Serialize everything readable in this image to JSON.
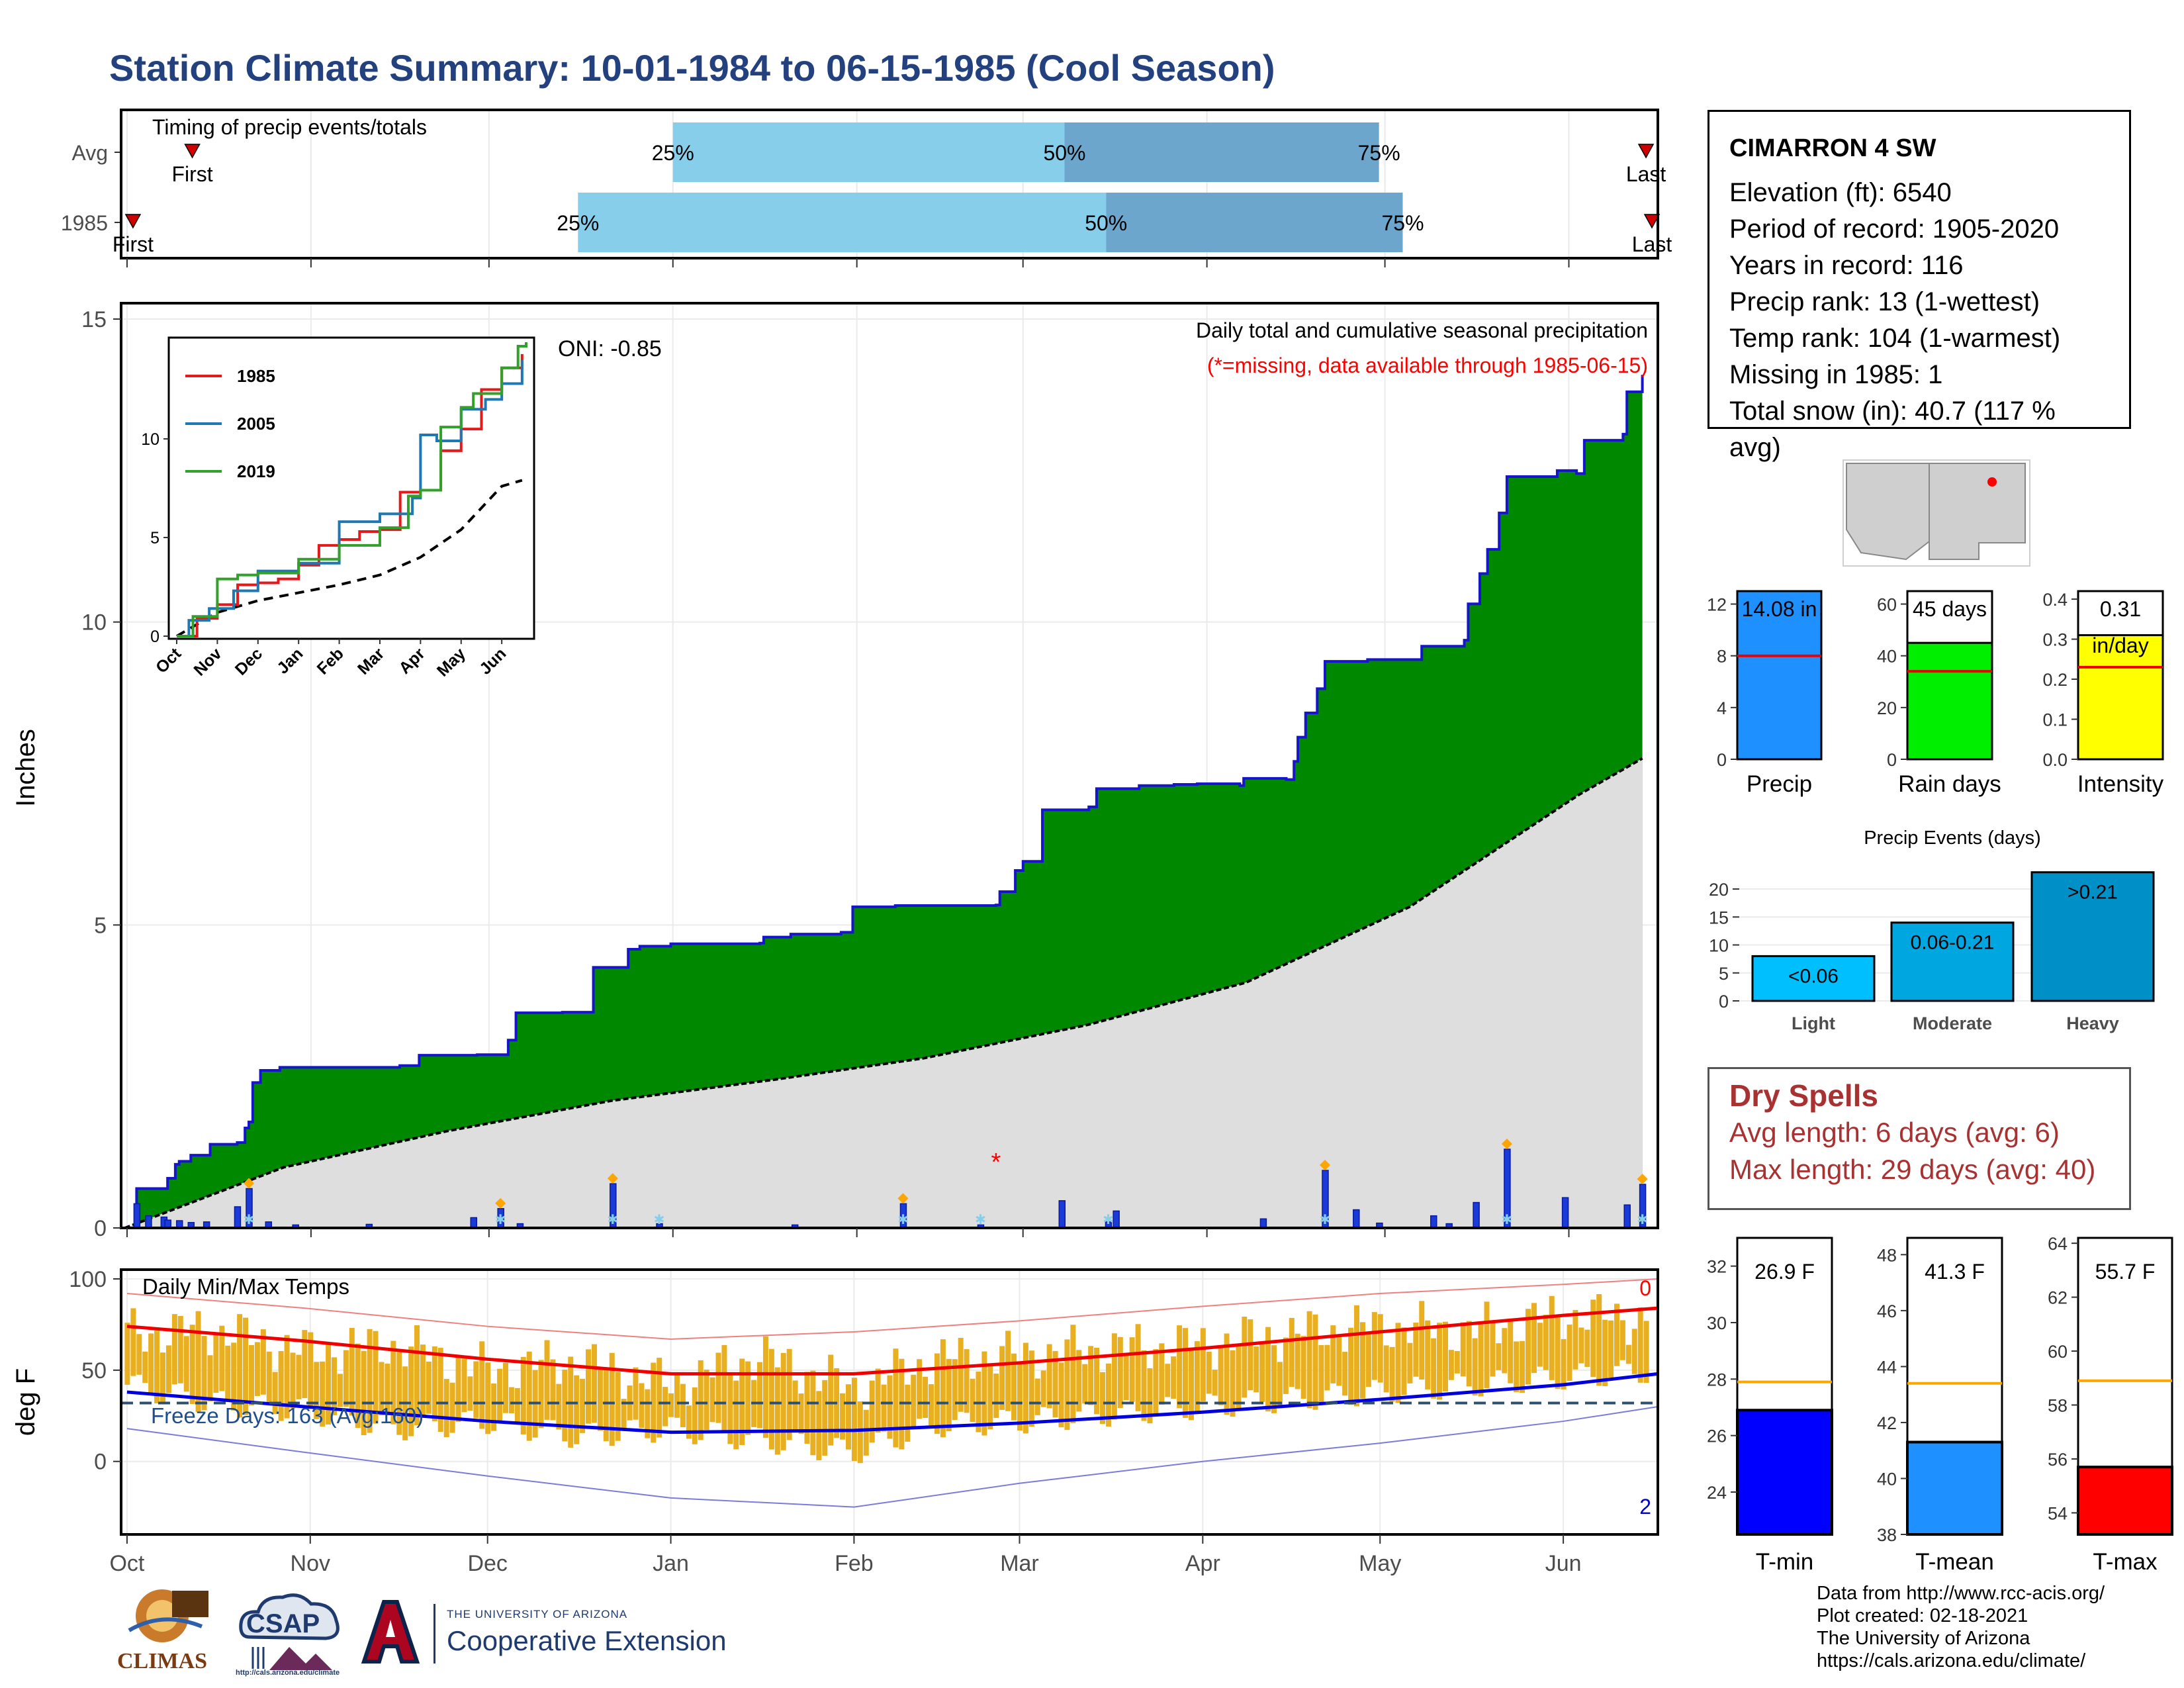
{
  "title": "Station Climate Summary: 10-01-1984 to 06-15-1985 (Cool Season)",
  "station": {
    "name": "CIMARRON 4 SW",
    "lines": [
      "Elevation (ft): 6540",
      "Period of record: 1905-2020",
      "Years in record: 116",
      "Precip rank: 13 (1-wettest)",
      "Temp rank: 104 (1-warmest)",
      "Missing in 1985: 1",
      "Total snow (in): 40.7 (117 % avg)"
    ]
  },
  "dry_spells": {
    "title": "Dry Spells",
    "avg_length": "Avg length: 6 days (avg: 6)",
    "max_length": "Max length: 29 days (avg: 40)"
  },
  "footer": {
    "lines": [
      "Data from http://www.rcc-acis.org/",
      "Plot created: 02-18-2021",
      "The University of Arizona",
      "https://cals.arizona.edu/climate/"
    ]
  },
  "logos": {
    "climas": "CLIMAS",
    "csap": "CSAP",
    "csap_url": "http://cals.arizona.edu/climate",
    "ua_small": "THE UNIVERSITY OF ARIZONA",
    "ua_big": "Cooperative Extension"
  },
  "chart_data": [
    {
      "id": "timing",
      "type": "bar",
      "title": "Timing of precip events/totals",
      "rows": [
        "Avg",
        "1985"
      ],
      "avg": {
        "first": "Oct 12",
        "p25": "Jan 1",
        "p50": "Mar 8",
        "p75": "Apr 30",
        "last": "Jun 14"
      },
      "y1985": {
        "first": "Oct 2",
        "p25": "Dec 16",
        "p50": "Mar 15",
        "p75": "May 4",
        "last": "Jun 15"
      },
      "labels": {
        "first": "First",
        "last": "Last",
        "p25": "25%",
        "p50": "50%",
        "p75": "75%"
      },
      "colors": {
        "early": "#87ceeb",
        "late": "#6ca6cd",
        "marker": "#d00000"
      }
    },
    {
      "id": "precip",
      "type": "area",
      "title": "Daily total and cumulative seasonal precipitation",
      "subtitle": "(*=missing, data available through 1985-06-15)",
      "ylabel": "Inches",
      "ylim": [
        0,
        15
      ],
      "yticks": [
        0,
        5,
        10,
        15
      ],
      "oni": "ONI: -0.85",
      "x_tick_labels": [
        "Oct",
        "Nov",
        "Dec",
        "Jan",
        "Feb",
        "Mar",
        "Apr",
        "May",
        "Jun"
      ],
      "cumulative_1985": [
        [
          0,
          0
        ],
        [
          3,
          0.65
        ],
        [
          10,
          0.65
        ],
        [
          11,
          0.82
        ],
        [
          13,
          1.05
        ],
        [
          14,
          1.1
        ],
        [
          17,
          1.2
        ],
        [
          22,
          1.38
        ],
        [
          29,
          1.41
        ],
        [
          31,
          1.65
        ],
        [
          32,
          1.75
        ],
        [
          33,
          2.4
        ],
        [
          35,
          2.6
        ],
        [
          40,
          2.65
        ],
        [
          55,
          2.65
        ],
        [
          71,
          2.68
        ],
        [
          76,
          2.85
        ],
        [
          91,
          2.86
        ],
        [
          99,
          3.1
        ],
        [
          101,
          3.55
        ],
        [
          113,
          3.56
        ],
        [
          121,
          4.3
        ],
        [
          130,
          4.6
        ],
        [
          133,
          4.65
        ],
        [
          141,
          4.69
        ],
        [
          164,
          4.7
        ],
        [
          165,
          4.8
        ],
        [
          172,
          4.85
        ],
        [
          185,
          4.88
        ],
        [
          188,
          5.3
        ],
        [
          199,
          5.32
        ],
        [
          225,
          5.33
        ],
        [
          226,
          5.55
        ],
        [
          230,
          5.9
        ],
        [
          232,
          6.05
        ],
        [
          237,
          6.9
        ],
        [
          249,
          6.95
        ],
        [
          251,
          7.25
        ],
        [
          262,
          7.3
        ],
        [
          271,
          7.32
        ],
        [
          277,
          7.33
        ],
        [
          288,
          7.3
        ],
        [
          289,
          7.42
        ],
        [
          300,
          7.4
        ],
        [
          302,
          7.7
        ],
        [
          303,
          8.1
        ],
        [
          305,
          8.5
        ],
        [
          308,
          8.9
        ],
        [
          310,
          9.35
        ],
        [
          321,
          9.38
        ],
        [
          335,
          9.6
        ],
        [
          346,
          9.7
        ],
        [
          347,
          10.3
        ],
        [
          350,
          10.8
        ],
        [
          352,
          11.2
        ],
        [
          355,
          11.8
        ],
        [
          357,
          12.4
        ],
        [
          370,
          12.5
        ],
        [
          375,
          12.45
        ],
        [
          377,
          13.0
        ],
        [
          387,
          13.1
        ],
        [
          388,
          13.8
        ],
        [
          392,
          14.08
        ]
      ],
      "cumulative_avg": [
        [
          0,
          0
        ],
        [
          30,
          1.0
        ],
        [
          61,
          1.6
        ],
        [
          92,
          2.1
        ],
        [
          123,
          2.45
        ],
        [
          151,
          2.8
        ],
        [
          182,
          3.35
        ],
        [
          212,
          4.05
        ],
        [
          243,
          5.3
        ],
        [
          275,
          7.15
        ],
        [
          287,
          7.75
        ]
      ],
      "daily_1985": [
        [
          3,
          0.4
        ],
        [
          6,
          0.2
        ],
        [
          10,
          0.18
        ],
        [
          11,
          0.13
        ],
        [
          14,
          0.12
        ],
        [
          17,
          0.09
        ],
        [
          21,
          0.1
        ],
        [
          29,
          0.35
        ],
        [
          32,
          0.65
        ],
        [
          37,
          0.1
        ],
        [
          44,
          0.05
        ],
        [
          63,
          0.06
        ],
        [
          90,
          0.17
        ],
        [
          97,
          0.32
        ],
        [
          102,
          0.07
        ],
        [
          126,
          0.73
        ],
        [
          138,
          0.07
        ],
        [
          173,
          0.05
        ],
        [
          201,
          0.4
        ],
        [
          221,
          0.05
        ],
        [
          242,
          0.45
        ],
        [
          254,
          0.1
        ],
        [
          256,
          0.28
        ],
        [
          294,
          0.15
        ],
        [
          310,
          0.95
        ],
        [
          318,
          0.3
        ],
        [
          324,
          0.08
        ],
        [
          338,
          0.2
        ],
        [
          342,
          0.07
        ],
        [
          349,
          0.42
        ],
        [
          357,
          1.3
        ],
        [
          372,
          0.5
        ],
        [
          388,
          0.38
        ],
        [
          392,
          0.72
        ]
      ],
      "missing_day": 225,
      "snow_days": [
        32,
        97,
        126,
        138,
        201,
        221,
        254,
        310,
        357,
        392
      ],
      "colors": {
        "cumulative": "#008800",
        "cum_line": "#1515cc",
        "avg_fill": "#dedede",
        "daily_bar": "#1a3bd8"
      }
    },
    {
      "id": "inset",
      "type": "line",
      "series_names": [
        "1985",
        "2005",
        "2019"
      ],
      "colors": [
        "#e31a1c",
        "#1f78b4",
        "#33a02c"
      ],
      "ylim": [
        0,
        15
      ],
      "yticks": [
        0,
        5,
        10
      ],
      "x_tick_labels": [
        "Oct",
        "Nov",
        "Dec",
        "Jan",
        "Feb",
        "Mar",
        "Apr",
        "May",
        "Jun"
      ],
      "s1985": [
        [
          0,
          0
        ],
        [
          0.5,
          0.9
        ],
        [
          1,
          1.6
        ],
        [
          1.5,
          2.6
        ],
        [
          2,
          2.7
        ],
        [
          2.5,
          2.9
        ],
        [
          3,
          3.6
        ],
        [
          3.5,
          4.6
        ],
        [
          4,
          4.9
        ],
        [
          4.5,
          5.3
        ],
        [
          5,
          5.4
        ],
        [
          5.5,
          7.3
        ],
        [
          6,
          7.4
        ],
        [
          6.5,
          9.4
        ],
        [
          7,
          10.5
        ],
        [
          7.5,
          12.5
        ],
        [
          8,
          13.6
        ],
        [
          8.5,
          14.3
        ]
      ],
      "s2005": [
        [
          0,
          0
        ],
        [
          0.3,
          0.8
        ],
        [
          0.8,
          1.4
        ],
        [
          1.4,
          2.3
        ],
        [
          2,
          3.3
        ],
        [
          3,
          3.7
        ],
        [
          4,
          5.8
        ],
        [
          5,
          6.2
        ],
        [
          5.8,
          7.0
        ],
        [
          6,
          10.2
        ],
        [
          6.4,
          9.9
        ],
        [
          7,
          11.5
        ],
        [
          7.6,
          12.0
        ],
        [
          8,
          12.8
        ],
        [
          8.5,
          14.0
        ]
      ],
      "s2019": [
        [
          0,
          0
        ],
        [
          0.4,
          1.0
        ],
        [
          1,
          2.9
        ],
        [
          1.5,
          3.1
        ],
        [
          2,
          3.2
        ],
        [
          3,
          3.9
        ],
        [
          4,
          4.6
        ],
        [
          5,
          5.5
        ],
        [
          5.7,
          7.1
        ],
        [
          6,
          7.4
        ],
        [
          6.5,
          10.6
        ],
        [
          7,
          11.6
        ],
        [
          7.3,
          12.3
        ],
        [
          8,
          13.6
        ],
        [
          8.4,
          14.7
        ],
        [
          8.6,
          14.9
        ]
      ],
      "avg_dashed": [
        [
          0,
          0
        ],
        [
          1,
          1.2
        ],
        [
          2,
          1.8
        ],
        [
          3,
          2.2
        ],
        [
          4,
          2.6
        ],
        [
          5,
          3.1
        ],
        [
          6,
          4.0
        ],
        [
          7,
          5.4
        ],
        [
          8,
          7.6
        ],
        [
          8.5,
          7.9
        ]
      ]
    },
    {
      "id": "temps",
      "type": "bar",
      "title": "Daily Min/Max Temps",
      "ylabel": "deg F",
      "ylim": [
        -40,
        100
      ],
      "yticks": [
        0,
        50,
        100
      ],
      "freeze_days": "Freeze Days: 163 (Avg:160)",
      "freeze_line": 32,
      "record_high_count": "0",
      "record_low_count": "2",
      "x_tick_labels": [
        "Oct",
        "Nov",
        "Dec",
        "Jan",
        "Feb",
        "Mar",
        "Apr",
        "May",
        "Jun"
      ],
      "avg_max": [
        [
          0,
          74
        ],
        [
          30,
          66
        ],
        [
          61,
          56
        ],
        [
          92,
          48
        ],
        [
          123,
          48
        ],
        [
          151,
          54
        ],
        [
          182,
          62
        ],
        [
          212,
          71
        ],
        [
          243,
          80
        ],
        [
          259,
          84
        ]
      ],
      "avg_min": [
        [
          0,
          38
        ],
        [
          30,
          30
        ],
        [
          61,
          22
        ],
        [
          92,
          16
        ],
        [
          123,
          17
        ],
        [
          151,
          21
        ],
        [
          182,
          27
        ],
        [
          212,
          34
        ],
        [
          243,
          42
        ],
        [
          259,
          48
        ]
      ],
      "rec_max": [
        [
          0,
          92
        ],
        [
          30,
          84
        ],
        [
          61,
          74
        ],
        [
          92,
          67
        ],
        [
          123,
          71
        ],
        [
          151,
          77
        ],
        [
          182,
          85
        ],
        [
          212,
          92
        ],
        [
          243,
          97
        ],
        [
          259,
          100
        ]
      ],
      "rec_min": [
        [
          0,
          18
        ],
        [
          30,
          5
        ],
        [
          61,
          -8
        ],
        [
          92,
          -20
        ],
        [
          123,
          -25
        ],
        [
          151,
          -12
        ],
        [
          182,
          0
        ],
        [
          212,
          10
        ],
        [
          243,
          22
        ],
        [
          259,
          30
        ]
      ],
      "obs_max": [
        [
          0,
          70
        ],
        [
          15,
          72
        ],
        [
          30,
          60
        ],
        [
          45,
          64
        ],
        [
          61,
          50
        ],
        [
          76,
          55
        ],
        [
          92,
          42
        ],
        [
          107,
          58
        ],
        [
          123,
          40
        ],
        [
          137,
          56
        ],
        [
          151,
          58
        ],
        [
          166,
          62
        ],
        [
          182,
          64
        ],
        [
          197,
          70
        ],
        [
          212,
          74
        ],
        [
          228,
          72
        ],
        [
          243,
          80
        ],
        [
          259,
          78
        ]
      ],
      "obs_min": [
        [
          0,
          42
        ],
        [
          15,
          32
        ],
        [
          30,
          28
        ],
        [
          45,
          18
        ],
        [
          61,
          22
        ],
        [
          76,
          14
        ],
        [
          92,
          18
        ],
        [
          107,
          12
        ],
        [
          123,
          5
        ],
        [
          137,
          20
        ],
        [
          151,
          22
        ],
        [
          166,
          26
        ],
        [
          182,
          30
        ],
        [
          197,
          34
        ],
        [
          212,
          38
        ],
        [
          228,
          42
        ],
        [
          243,
          46
        ],
        [
          259,
          50
        ]
      ]
    },
    {
      "id": "season-bars",
      "type": "bar",
      "panels": [
        {
          "label": "Precip",
          "value": 14.08,
          "avg": 8.0,
          "text": "14.08 in",
          "ylim": [
            0,
            13
          ],
          "yticks": [
            0,
            4,
            8,
            12
          ],
          "color": "#1e90ff"
        },
        {
          "label": "Rain days",
          "value": 45,
          "avg": 34,
          "text": "45 days",
          "ylim": [
            0,
            65
          ],
          "yticks": [
            0,
            20,
            40,
            60
          ],
          "color": "#00ee00"
        },
        {
          "label": "Intensity",
          "value": 0.31,
          "avg": 0.23,
          "text": "0.31",
          "text2": "in/day",
          "ylim": [
            0,
            0.42
          ],
          "yticks": [
            "0.0",
            "0.1",
            "0.2",
            "0.3",
            "0.4"
          ],
          "color": "#ffff00"
        }
      ]
    },
    {
      "id": "events",
      "type": "bar",
      "title": "Precip Events (days)",
      "categories": [
        "Light",
        "Moderate",
        "Heavy"
      ],
      "values": [
        8,
        14,
        23
      ],
      "bar_labels": [
        "<0.06",
        "0.06-0.21",
        ">0.21"
      ],
      "yticks": [
        0,
        5,
        10,
        15,
        20
      ],
      "colors": [
        "#00bfff",
        "#00a6e0",
        "#0090c8"
      ]
    },
    {
      "id": "temp-bars",
      "type": "bar",
      "panels": [
        {
          "label": "T-min",
          "value": 26.9,
          "avg": 27.9,
          "text": "26.9 F",
          "ylim": [
            22.5,
            33
          ],
          "yticks": [
            24,
            26,
            28,
            30,
            32
          ],
          "color": "#0000ff"
        },
        {
          "label": "T-mean",
          "value": 41.3,
          "avg": 43.4,
          "text": "41.3 F",
          "ylim": [
            38,
            48.6
          ],
          "yticks": [
            38,
            40,
            42,
            44,
            46,
            48
          ],
          "color": "#1e90ff"
        },
        {
          "label": "T-max",
          "value": 55.7,
          "avg": 58.9,
          "text": "55.7 F",
          "ylim": [
            53.2,
            64.2
          ],
          "yticks": [
            54,
            56,
            58,
            60,
            62,
            64
          ],
          "color": "#ff0000"
        }
      ]
    }
  ]
}
